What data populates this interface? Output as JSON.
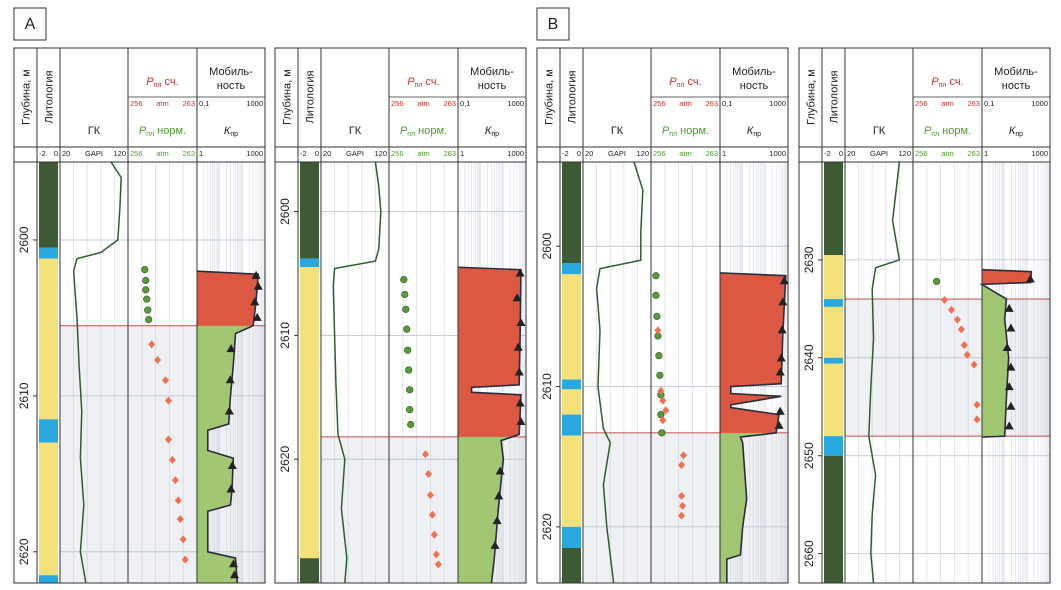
{
  "headers": {
    "depth": "Глубина, м",
    "lithology": "Литология",
    "gk": "ГК",
    "gk_unit": "GAPI",
    "p": "Р",
    "p_sub": "пл",
    "p_calc": " сч.",
    "p_norm": " норм.",
    "p_unit": "atm",
    "mobility": [
      "Мобиль-",
      "ность"
    ],
    "k": "К",
    "k_sub": "пр"
  },
  "scales": {
    "sp": [
      -2,
      0
    ],
    "gk": [
      20,
      120
    ],
    "p": [
      256,
      263
    ],
    "mobility": [
      {
        "value": 0.1,
        "label": "0,1"
      },
      1000
    ],
    "k": [
      1,
      1000
    ]
  },
  "chart_data": [
    {
      "type": "well-log",
      "label": "A",
      "ylim": [
        2595,
        2622
      ],
      "yticks": [
        2600,
        2610,
        2620
      ],
      "lithology": [
        {
          "from": 2595,
          "to": 2600.5,
          "color": "#3d5a35"
        },
        {
          "from": 2600.5,
          "to": 2601.2,
          "color": "#29a8e0"
        },
        {
          "from": 2601.2,
          "to": 2611.5,
          "color": "#f3e27a"
        },
        {
          "from": 2611.5,
          "to": 2613,
          "color": "#29a8e0"
        },
        {
          "from": 2613,
          "to": 2621.5,
          "color": "#f3e27a"
        },
        {
          "from": 2621.5,
          "to": 2622,
          "color": "#29a8e0"
        }
      ],
      "highlight": [
        2605.5,
        2622
      ],
      "gk": {
        "color": "#2e5e2e",
        "depth": [
          2595,
          2596,
          2598,
          2600,
          2600.8,
          2601.2,
          2602,
          2605,
          2608,
          2611,
          2614,
          2617,
          2620,
          2622
        ],
        "values": [
          95,
          110,
          108,
          105,
          80,
          45,
          40,
          45,
          48,
          52,
          50,
          55,
          50,
          58
        ]
      },
      "p_norm": {
        "color": "#5a9a3a",
        "depth": [
          2601.9,
          2602.6,
          2603.2,
          2603.8,
          2604.5,
          2605.1
        ],
        "values": [
          257.7,
          257.8,
          257.8,
          257.9,
          258.0,
          258.1
        ]
      },
      "p_calc": {
        "color": "#f07050",
        "depth": [
          2606.7,
          2607.7,
          2609.0,
          2610.3,
          2612.8,
          2614.1,
          2615.4,
          2616.7,
          2617.9,
          2619.2,
          2620.5
        ],
        "values": [
          258.4,
          259.0,
          259.8,
          260.1,
          260.1,
          260.5,
          260.8,
          261.1,
          261.3,
          261.6,
          261.8
        ]
      },
      "k": {
        "color": "#9cc46a",
        "depth": [
          2602,
          2602.2,
          2604,
          2605.5,
          2606,
          2608,
          2610,
          2611.8,
          2612.2,
          2613.5,
          2614,
          2616,
          2617,
          2617.4,
          2620,
          2620.4,
          2622
        ],
        "values": [
          1,
          500,
          400,
          300,
          50,
          40,
          30,
          25,
          3,
          3,
          40,
          35,
          30,
          3,
          3,
          50,
          60
        ]
      },
      "oil": {
        "color": "#e8443a",
        "range": [
          2602,
          2605.5
        ]
      },
      "mobility": {
        "color": "#222222",
        "depth": [
          2602.3,
          2603,
          2604,
          2605,
          2607,
          2609,
          2611,
          2614.5,
          2616,
          2620.8,
          2621.5
        ],
        "values": [
          300,
          400,
          250,
          350,
          10,
          9,
          8,
          12,
          10,
          14,
          16
        ]
      }
    },
    {
      "type": "well-log",
      "ylim": [
        2596,
        2630
      ],
      "yticks": [
        2600,
        2610,
        2620
      ],
      "lithology": [
        {
          "from": 2596,
          "to": 2603.8,
          "color": "#3d5a35"
        },
        {
          "from": 2603.8,
          "to": 2604.5,
          "color": "#29a8e0"
        },
        {
          "from": 2604.5,
          "to": 2628,
          "color": "#f3e27a"
        },
        {
          "from": 2628,
          "to": 2630,
          "color": "#3d5a35"
        }
      ],
      "highlight": [
        2618.2,
        2630
      ],
      "gk": {
        "color": "#2e5e2e",
        "depth": [
          2596,
          2598,
          2600,
          2603,
          2604,
          2604.6,
          2606,
          2610,
          2614,
          2618,
          2620,
          2624,
          2628,
          2630
        ],
        "values": [
          100,
          105,
          108,
          105,
          100,
          40,
          38,
          40,
          42,
          45,
          55,
          50,
          58,
          55
        ]
      },
      "p_norm": {
        "color": "#5a9a3a",
        "depth": [
          2605.5,
          2606.7,
          2607.9,
          2609.5,
          2611.2,
          2612.8,
          2614.4,
          2616,
          2617.2
        ],
        "values": [
          257.5,
          257.6,
          257.7,
          257.8,
          257.9,
          258.0,
          258.1,
          258.1,
          258.2
        ]
      },
      "p_calc": {
        "color": "#f07050",
        "depth": [
          2619.6,
          2621.2,
          2622.9,
          2624.5,
          2626.1,
          2627.7,
          2628.5
        ],
        "values": [
          259.7,
          260.0,
          260.2,
          260.4,
          260.6,
          260.8,
          261.0
        ]
      },
      "k": {
        "color": "#9cc46a",
        "depth": [
          2604.5,
          2604.7,
          2610,
          2614,
          2614.2,
          2614.6,
          2614.8,
          2618,
          2618.5,
          2620,
          2624,
          2628,
          2630
        ],
        "values": [
          1,
          600,
          550,
          500,
          4,
          4,
          600,
          500,
          80,
          100,
          60,
          40,
          30
        ]
      },
      "oil": {
        "color": "#e8443a",
        "range": [
          2604.5,
          2618.2
        ]
      },
      "mobility": {
        "color": "#222222",
        "depth": [
          2605,
          2607,
          2609,
          2611,
          2613,
          2615.5,
          2617,
          2621,
          2623,
          2625,
          2627
        ],
        "values": [
          450,
          300,
          500,
          350,
          400,
          450,
          500,
          30,
          25,
          20,
          15
        ]
      }
    },
    {
      "type": "well-log",
      "label": "B",
      "ylim": [
        2594,
        2624
      ],
      "yticks": [
        2600,
        2610,
        2620
      ],
      "lithology": [
        {
          "from": 2594,
          "to": 2601.2,
          "color": "#3d5a35"
        },
        {
          "from": 2601.2,
          "to": 2602,
          "color": "#29a8e0"
        },
        {
          "from": 2602,
          "to": 2609.5,
          "color": "#f3e27a"
        },
        {
          "from": 2609.5,
          "to": 2610.2,
          "color": "#29a8e0"
        },
        {
          "from": 2610.2,
          "to": 2612,
          "color": "#f3e27a"
        },
        {
          "from": 2612,
          "to": 2613.5,
          "color": "#29a8e0"
        },
        {
          "from": 2613.5,
          "to": 2620,
          "color": "#f3e27a"
        },
        {
          "from": 2620,
          "to": 2621.5,
          "color": "#29a8e0"
        },
        {
          "from": 2621.5,
          "to": 2624,
          "color": "#3d5a35"
        }
      ],
      "highlight": [
        2613.3,
        2624
      ],
      "gk": {
        "color": "#2e5e2e",
        "depth": [
          2594,
          2596,
          2599,
          2601,
          2601.6,
          2603,
          2606,
          2610,
          2613,
          2614,
          2617,
          2620,
          2624
        ],
        "values": [
          95,
          108,
          105,
          105,
          45,
          40,
          45,
          42,
          50,
          60,
          50,
          55,
          65
        ]
      },
      "p_norm": {
        "color": "#5a9a3a",
        "depth": [
          2602.1,
          2603.5,
          2605,
          2606.4,
          2607.8,
          2609.2,
          2610.6,
          2612,
          2613.3
        ],
        "values": [
          256.5,
          256.5,
          256.6,
          256.7,
          256.8,
          256.9,
          257,
          257,
          257.1
        ]
      },
      "p_calc": {
        "color": "#f07050",
        "depth": [
          2606,
          2610.3,
          2611,
          2611.7,
          2612.4,
          2614.9,
          2615.6,
          2617.8,
          2618.5,
          2619.2
        ],
        "values": [
          256.7,
          257.0,
          257.2,
          257.5,
          257.2,
          259.3,
          259.1,
          259.1,
          259.2,
          259.1
        ]
      },
      "k": {
        "color": "#9cc46a",
        "depth": [
          2601.9,
          2602.1,
          2606,
          2609.8,
          2610,
          2610.5,
          2610.7,
          2611.3,
          2611.5,
          2612,
          2613.3,
          2613.6,
          2614,
          2618,
          2620,
          2622,
          2622.3,
          2624
        ],
        "values": [
          1,
          800,
          600,
          500,
          3,
          3,
          500,
          3,
          3,
          400,
          300,
          8,
          10,
          15,
          10,
          8,
          2,
          2
        ]
      },
      "oil": {
        "color": "#e8443a",
        "range": [
          2601.9,
          2613.3
        ]
      },
      "mobility": {
        "color": "#222222",
        "depth": [
          2602.5,
          2604,
          2606,
          2608,
          2609,
          2611.8,
          2612.8
        ],
        "values": [
          600,
          500,
          450,
          400,
          350,
          350,
          300
        ]
      }
    },
    {
      "type": "well-log",
      "ylim": [
        2620,
        2663
      ],
      "yticks": [
        2630,
        2640,
        2650,
        2660
      ],
      "lithology": [
        {
          "from": 2620,
          "to": 2629.5,
          "color": "#3d5a35"
        },
        {
          "from": 2629.5,
          "to": 2634,
          "color": "#f3e27a"
        },
        {
          "from": 2634,
          "to": 2634.8,
          "color": "#29a8e0"
        },
        {
          "from": 2634.8,
          "to": 2640,
          "color": "#f3e27a"
        },
        {
          "from": 2640,
          "to": 2640.6,
          "color": "#29a8e0"
        },
        {
          "from": 2640.6,
          "to": 2648,
          "color": "#f3e27a"
        },
        {
          "from": 2648,
          "to": 2650,
          "color": "#29a8e0"
        },
        {
          "from": 2650,
          "to": 2663,
          "color": "#3d5a35"
        }
      ],
      "highlight": [
        2634,
        2648
      ],
      "gk": {
        "color": "#2e5e2e",
        "depth": [
          2620,
          2623,
          2626,
          2630,
          2630.8,
          2633,
          2638,
          2643,
          2648,
          2652,
          2656,
          2660,
          2663
        ],
        "values": [
          100,
          95,
          90,
          100,
          65,
          60,
          62,
          58,
          55,
          65,
          60,
          58,
          62
        ]
      },
      "p_norm": {
        "color": "#5a9a3a",
        "depth": [
          2632.2
        ],
        "values": [
          258.4
        ]
      },
      "p_calc": {
        "color": "#f07050",
        "depth": [
          2634.1,
          2635.1,
          2636.1,
          2637.1,
          2638.7,
          2639.7,
          2640.7,
          2644.8,
          2646.3
        ],
        "values": [
          259.2,
          259.9,
          260.5,
          260.9,
          261.2,
          261.5,
          262.2,
          262.5,
          262.5
        ]
      },
      "k": {
        "color": "#9cc46a",
        "depth": [
          2631,
          2631.2,
          2632.3,
          2632.5,
          2634,
          2636,
          2640,
          2644,
          2648,
          2648.1
        ],
        "values": [
          1,
          150,
          140,
          1,
          12,
          10,
          15,
          12,
          10,
          1
        ]
      },
      "oil": {
        "color": "#e8443a",
        "range": [
          2631,
          2632.5
        ]
      },
      "mobility": {
        "color": "#222222",
        "depth": [
          2632,
          2635,
          2637,
          2639,
          2641,
          2643,
          2645,
          2647
        ],
        "values": [
          70,
          4,
          5,
          3,
          5,
          4,
          5,
          4
        ]
      }
    }
  ]
}
